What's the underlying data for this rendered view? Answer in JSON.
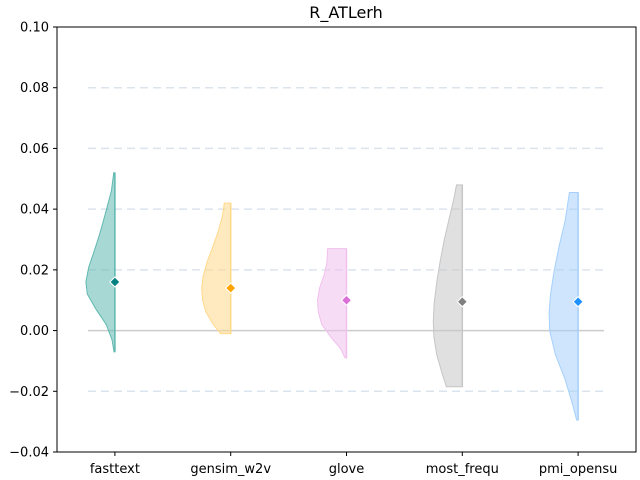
{
  "chart_data": {
    "type": "violin",
    "title": "R_ATLerh",
    "xlabel": "",
    "ylabel": "",
    "ylim": [
      -0.04,
      0.1
    ],
    "yticks": [
      "−0.04",
      "−0.02",
      "0.00",
      "0.02",
      "0.04",
      "0.06",
      "0.08",
      "0.10"
    ],
    "ytick_values": [
      -0.04,
      -0.02,
      0.0,
      0.02,
      0.04,
      0.06,
      0.08,
      0.1
    ],
    "grid": "horizontal dashed",
    "reference_line": 0.0,
    "categories": [
      "fasttext",
      "gensim_w2v",
      "glove",
      "most_frequ",
      "pmi_opensu"
    ],
    "series": [
      {
        "category": "fasttext",
        "color": "#008080",
        "fill": "#5fb8b0",
        "mean": 0.016,
        "min": -0.007,
        "max": 0.052,
        "density": [
          [
            -0.007,
            0.03
          ],
          [
            -0.003,
            0.1
          ],
          [
            0.002,
            0.3
          ],
          [
            0.007,
            0.65
          ],
          [
            0.012,
            0.95
          ],
          [
            0.016,
            1.0
          ],
          [
            0.021,
            0.9
          ],
          [
            0.026,
            0.72
          ],
          [
            0.031,
            0.55
          ],
          [
            0.036,
            0.4
          ],
          [
            0.041,
            0.26
          ],
          [
            0.046,
            0.12
          ],
          [
            0.052,
            0.04
          ]
        ]
      },
      {
        "category": "gensim_w2v",
        "color": "#ffa500",
        "fill": "#ffd98a",
        "mean": 0.014,
        "min": -0.001,
        "max": 0.042,
        "density": [
          [
            -0.001,
            0.35
          ],
          [
            0.002,
            0.6
          ],
          [
            0.006,
            0.85
          ],
          [
            0.01,
            0.97
          ],
          [
            0.014,
            1.0
          ],
          [
            0.018,
            0.95
          ],
          [
            0.023,
            0.8
          ],
          [
            0.028,
            0.6
          ],
          [
            0.033,
            0.42
          ],
          [
            0.038,
            0.28
          ],
          [
            0.042,
            0.22
          ]
        ]
      },
      {
        "category": "glove",
        "color": "#da70d6",
        "fill": "#f0c0ee",
        "mean": 0.01,
        "min": -0.009,
        "max": 0.027,
        "density": [
          [
            -0.009,
            0.05
          ],
          [
            -0.006,
            0.2
          ],
          [
            -0.002,
            0.55
          ],
          [
            0.002,
            0.85
          ],
          [
            0.006,
            0.97
          ],
          [
            0.01,
            1.0
          ],
          [
            0.014,
            0.93
          ],
          [
            0.018,
            0.78
          ],
          [
            0.022,
            0.68
          ],
          [
            0.027,
            0.65
          ]
        ]
      },
      {
        "category": "most_frequ",
        "color": "#808080",
        "fill": "#c6c6c6",
        "mean": 0.0095,
        "min": -0.0185,
        "max": 0.048,
        "density": [
          [
            -0.0185,
            0.55
          ],
          [
            -0.014,
            0.7
          ],
          [
            -0.008,
            0.88
          ],
          [
            -0.002,
            0.98
          ],
          [
            0.003,
            1.0
          ],
          [
            0.009,
            0.97
          ],
          [
            0.016,
            0.88
          ],
          [
            0.023,
            0.76
          ],
          [
            0.03,
            0.62
          ],
          [
            0.037,
            0.45
          ],
          [
            0.043,
            0.3
          ],
          [
            0.048,
            0.2
          ]
        ]
      },
      {
        "category": "pmi_opensu",
        "color": "#1e90ff",
        "fill": "#a6d0fb",
        "mean": 0.0095,
        "min": -0.0295,
        "max": 0.0455,
        "density": [
          [
            -0.0295,
            0.05
          ],
          [
            -0.024,
            0.2
          ],
          [
            -0.016,
            0.45
          ],
          [
            -0.008,
            0.78
          ],
          [
            0.0,
            0.98
          ],
          [
            0.006,
            1.0
          ],
          [
            0.012,
            0.95
          ],
          [
            0.02,
            0.82
          ],
          [
            0.028,
            0.65
          ],
          [
            0.036,
            0.45
          ],
          [
            0.0455,
            0.3
          ]
        ]
      }
    ]
  }
}
